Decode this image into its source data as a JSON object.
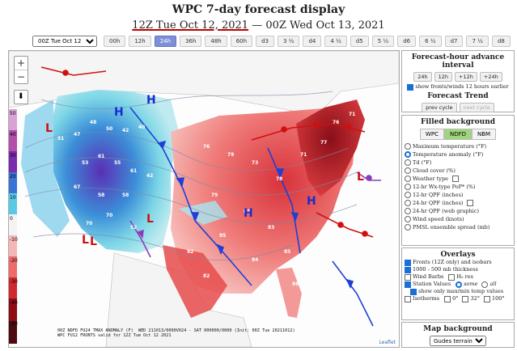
{
  "title": "WPC 7-day forecast display",
  "timeline": {
    "start": "12Z Tue Oct 12, 2021",
    "sep": "—",
    "end": "00Z Wed Oct 13, 2021"
  },
  "toolbar": {
    "selected": "00Z Tue Oct 12",
    "buttons": [
      "00h",
      "12h",
      "24h",
      "36h",
      "48h",
      "60h",
      "d3",
      "3 ½",
      "d4",
      "4 ½",
      "d5",
      "5 ½",
      "d6",
      "6 ½",
      "d7",
      "7 ½",
      "d8"
    ],
    "active_index": 2
  },
  "map": {
    "zoom_in": "+",
    "zoom_out": "−",
    "download": "⬇",
    "colorbar_labels": [
      "50",
      "40",
      "30",
      "20",
      "10",
      "0",
      "-10",
      "-20",
      "-30",
      "-40",
      "-50"
    ],
    "caption": "00Z NDFD FU24 TMAX ANOMALY (F)  WED 211013/0000V024 - SAT 000000/0000 (Init: 00Z Tue 20211012)\nWPC FU12 FRONTS valid for 12Z Tue Oct 12 2021",
    "attribution": "Leaflet",
    "pressure_labels": [
      {
        "t": "H",
        "c": "#1a2ccf"
      },
      {
        "t": "H",
        "c": "#1a2ccf"
      },
      {
        "t": "H",
        "c": "#1a2ccf"
      },
      {
        "t": "H",
        "c": "#1a2ccf"
      },
      {
        "t": "L",
        "c": "#d01010"
      },
      {
        "t": "L",
        "c": "#d01010"
      },
      {
        "t": "L",
        "c": "#d01010"
      },
      {
        "t": "L",
        "c": "#d01010"
      },
      {
        "t": "L",
        "c": "#d01010"
      }
    ]
  },
  "panel_advance": {
    "title": "Forecast-hour advance interval",
    "buttons": [
      "24h",
      "12h",
      "+12h",
      "+24h"
    ],
    "checkbox": "show fronts/winds 12 hours earlier",
    "trend_title": "Forecast Trend",
    "prev": "prev cycle",
    "next": "next cycle"
  },
  "panel_filled": {
    "title": "Filled background",
    "sources": [
      "WPC",
      "NDFD",
      "NBM"
    ],
    "active_source": 1,
    "options": [
      "Maximum temperature (°F)",
      "Temperature anomaly (°F)",
      "Td (°F)",
      "Cloud cover (%)",
      "Weather type",
      "12-hr Wx-type PoP* (%)",
      "12-hr QPF (inches)",
      "24-hr QPF (inches)",
      "24-hr QPF (web graphic)",
      "Wind speed (knots)",
      "PMSL ensemble spread (mb)"
    ],
    "selected_index": 1
  },
  "panel_overlays": {
    "title": "Overlays",
    "fronts": "Fronts (12Z only) and isobars",
    "thickness": "1000 - 500 mb thickness",
    "barbs": "Wind Barbs",
    "h5": "H₅ res",
    "station": "Station Values",
    "some": "some",
    "all": "all",
    "only": "show only max/min temp values",
    "isotherms": "Isotherms",
    "iso0": "0°",
    "iso32": "32°",
    "iso100": "100°"
  },
  "panel_mapbg": {
    "title": "Map background",
    "selected": "Gudes terrain"
  }
}
